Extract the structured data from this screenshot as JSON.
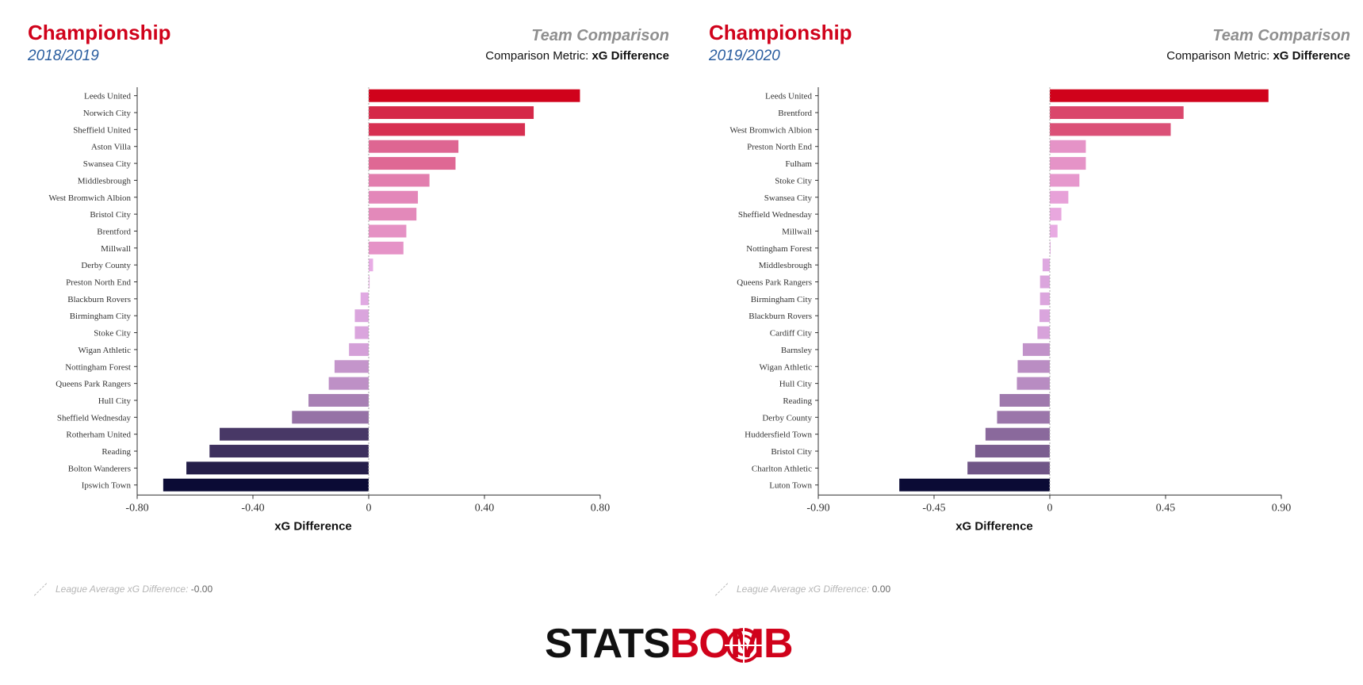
{
  "left": {
    "league": "Championship",
    "season": "2018/2019",
    "comparison_title": "Team Comparison",
    "metric_prefix": "Comparison Metric: ",
    "metric_name": "xG Difference",
    "league_avg_label": "League Average xG Difference:",
    "league_avg_value": "-0.00"
  },
  "right": {
    "league": "Championship",
    "season": "2019/2020",
    "comparison_title": "Team Comparison",
    "metric_prefix": "Comparison Metric: ",
    "metric_name": "xG Difference",
    "league_avg_label": "League Average xG Difference:",
    "league_avg_value": "0.00"
  },
  "logo": {
    "part1": "STATS",
    "part2": "BOMB"
  },
  "colors": {
    "positive_max": "#d0021b",
    "neutral": "#e9b0e9",
    "negative_max": "#0b0b35",
    "league_red": "#d0021b",
    "season_blue": "#2a5d9f"
  },
  "chart_data": [
    {
      "type": "bar",
      "orientation": "horizontal",
      "xlabel": "xG Difference",
      "xlim": [
        -0.8,
        0.8
      ],
      "xticks": [
        -0.8,
        -0.4,
        0,
        0.4,
        0.8
      ],
      "xtick_labels": [
        "-0.80",
        "-0.40",
        "0",
        "0.40",
        "0.80"
      ],
      "categories": [
        "Leeds United",
        "Norwich City",
        "Sheffield United",
        "Aston Villa",
        "Swansea City",
        "Middlesbrough",
        "West Bromwich Albion",
        "Bristol City",
        "Brentford",
        "Millwall",
        "Derby County",
        "Preston North End",
        "Blackburn Rovers",
        "Birmingham City",
        "Stoke City",
        "Wigan Athletic",
        "Nottingham Forest",
        "Queens Park Rangers",
        "Hull City",
        "Sheffield Wednesday",
        "Rotherham United",
        "Reading",
        "Bolton Wanderers",
        "Ipswich Town"
      ],
      "values": [
        0.73,
        0.57,
        0.54,
        0.31,
        0.3,
        0.21,
        0.17,
        0.165,
        0.13,
        0.12,
        0.015,
        0.003,
        -0.028,
        -0.048,
        -0.048,
        -0.068,
        -0.118,
        -0.138,
        -0.208,
        -0.265,
        -0.515,
        -0.55,
        -0.63,
        -0.71
      ]
    },
    {
      "type": "bar",
      "orientation": "horizontal",
      "xlabel": "xG Difference",
      "xlim": [
        -0.9,
        0.9
      ],
      "xticks": [
        -0.9,
        -0.45,
        0,
        0.45,
        0.9
      ],
      "xtick_labels": [
        "-0.90",
        "-0.45",
        "0",
        "0.45",
        "0.90"
      ],
      "categories": [
        "Leeds United",
        "Brentford",
        "West Bromwich Albion",
        "Preston North End",
        "Fulham",
        "Stoke City",
        "Swansea City",
        "Sheffield Wednesday",
        "Millwall",
        "Nottingham Forest",
        "Middlesbrough",
        "Queens Park Rangers",
        "Birmingham City",
        "Blackburn Rovers",
        "Cardiff City",
        "Barnsley",
        "Wigan Athletic",
        "Hull City",
        "Reading",
        "Derby County",
        "Huddersfield Town",
        "Bristol City",
        "Charlton Athletic",
        "Luton Town"
      ],
      "values": [
        0.85,
        0.52,
        0.47,
        0.14,
        0.14,
        0.115,
        0.072,
        0.045,
        0.03,
        0.003,
        -0.028,
        -0.038,
        -0.038,
        -0.04,
        -0.048,
        -0.105,
        -0.125,
        -0.128,
        -0.195,
        -0.205,
        -0.25,
        -0.29,
        -0.32,
        -0.585
      ]
    }
  ]
}
